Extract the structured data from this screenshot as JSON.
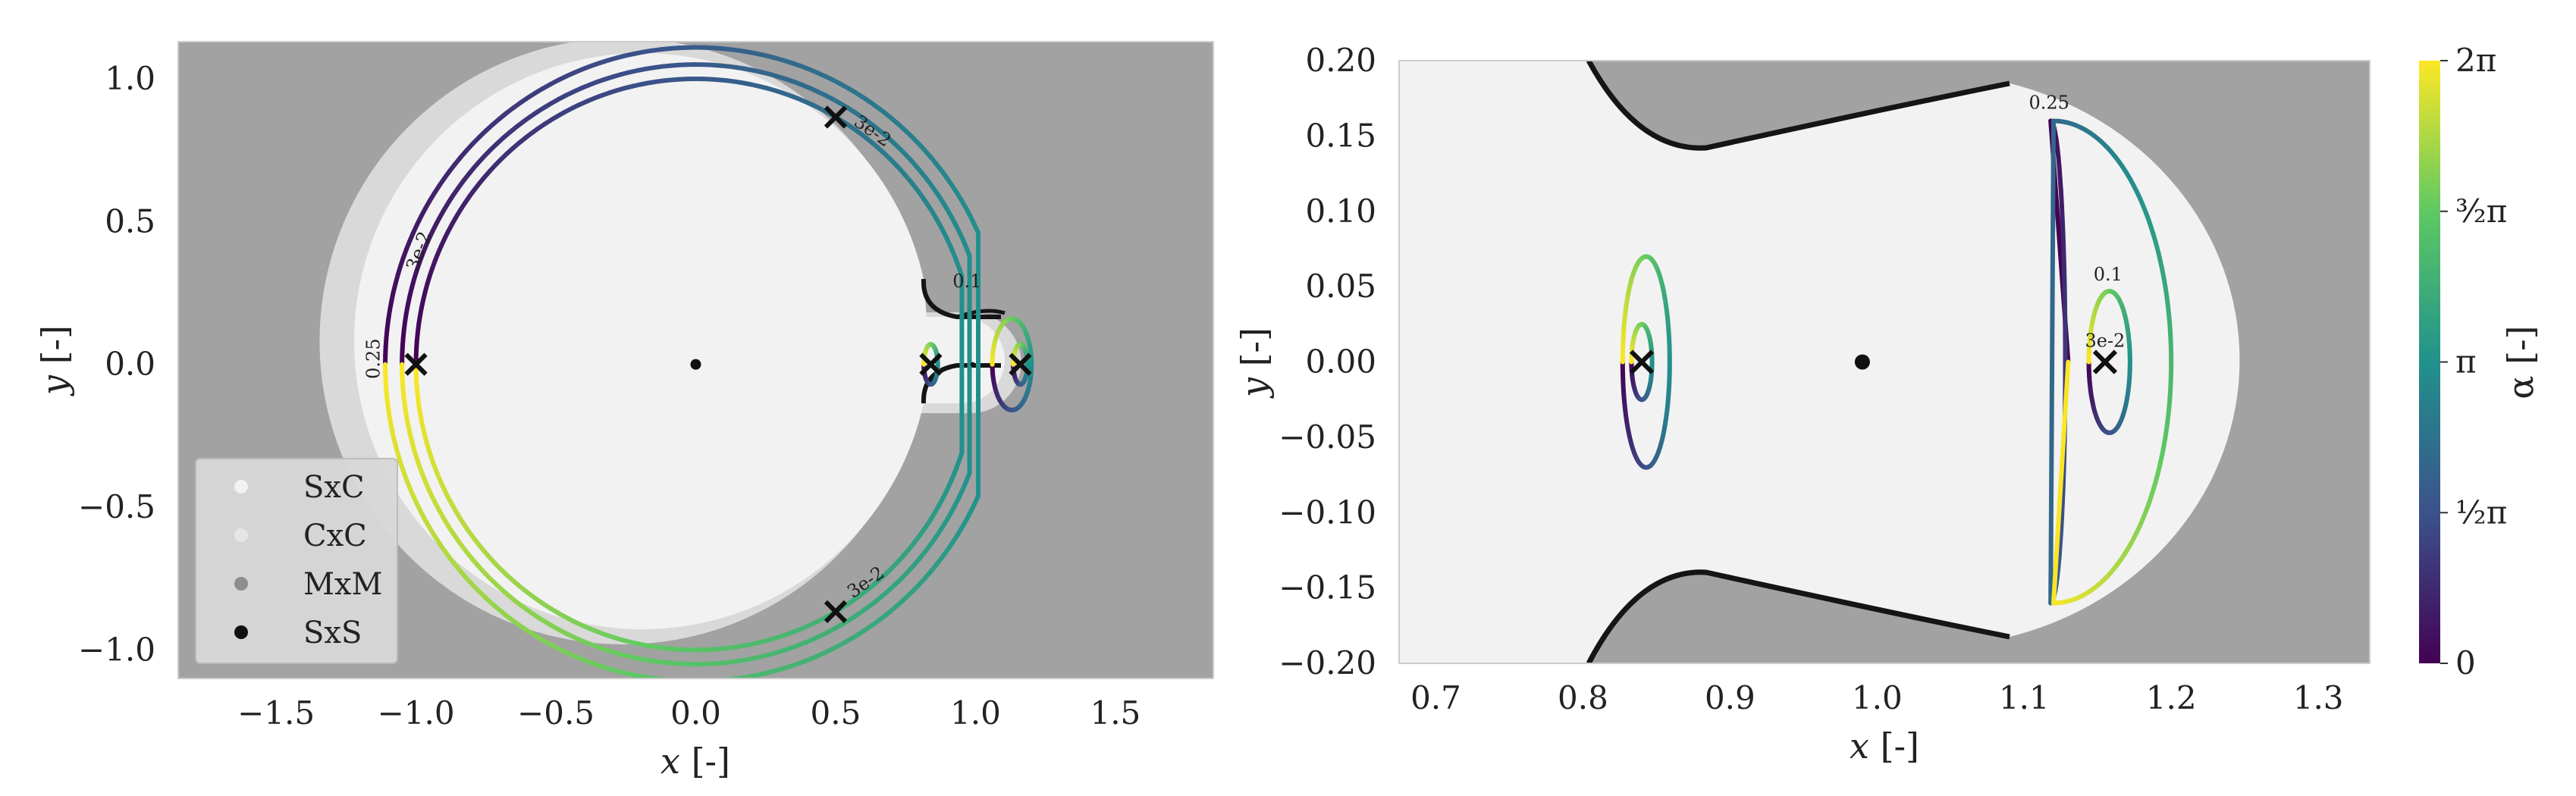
{
  "chart_data": [
    {
      "type": "line",
      "xlabel_var": "x",
      "xlabel_unit": "[-]",
      "ylabel_var": "y",
      "ylabel_unit": "[-]",
      "xlim": [
        -1.85,
        1.85
      ],
      "ylim": [
        -1.1,
        1.13
      ],
      "xticks": [
        -1.5,
        -1.0,
        -0.5,
        0.0,
        0.5,
        1.0,
        1.5
      ],
      "xtick_labels": [
        "−1.5",
        "−1.0",
        "−0.5",
        "0.0",
        "0.5",
        "1.0",
        "1.5"
      ],
      "yticks": [
        -1.0,
        -0.5,
        0.0,
        0.5,
        1.0
      ],
      "ytick_labels": [
        "−1.0",
        "−0.5",
        "0.0",
        "0.5",
        "1.0"
      ],
      "grid": false,
      "legend_position": "lower-left",
      "legend": [
        {
          "label": "SxC",
          "color": "#f2f2f2"
        },
        {
          "label": "CxC",
          "color": "#d9d9d9"
        },
        {
          "label": "MxM",
          "color": "#9a9a9a"
        },
        {
          "label": "SxS",
          "color": "#111111"
        }
      ],
      "contour_labels": [
        "0.25",
        "3e-2",
        "0.1",
        "3e-2",
        "3e-2"
      ],
      "points": {
        "primary": [
          0.0,
          0.0
        ],
        "secondary": [
          0.99,
          0.0
        ],
        "x_markers": [
          [
            -1.0,
            0.0
          ],
          [
            0.5,
            0.866
          ],
          [
            0.5,
            -0.866
          ],
          [
            0.84,
            0.0
          ],
          [
            1.16,
            0.0
          ]
        ]
      },
      "contour_levels": [
        {
          "label": "0.25",
          "r": 1.11,
          "points": [
            [
              -1.11,
              0.0
            ],
            [
              0.0,
              1.11
            ],
            [
              0.84,
              0.44
            ],
            [
              0.84,
              -0.44
            ],
            [
              0.0,
              -1.11
            ]
          ]
        },
        {
          "label": "0.1",
          "r": 1.05,
          "points": [
            [
              -1.05,
              0.0
            ],
            [
              0.0,
              1.05
            ],
            [
              0.86,
              0.35
            ],
            [
              0.86,
              -0.35
            ],
            [
              0.0,
              -1.05
            ]
          ]
        },
        {
          "label": "3e-2",
          "r": 1.0,
          "points": [
            [
              -1.0,
              0.0
            ],
            [
              0.0,
              1.0
            ],
            [
              0.5,
              0.866
            ],
            [
              0.5,
              -0.866
            ],
            [
              0.0,
              -1.0
            ]
          ]
        }
      ]
    },
    {
      "type": "line",
      "xlabel_var": "x",
      "xlabel_unit": "[-]",
      "ylabel_var": "y",
      "ylabel_unit": "[-]",
      "xlim": [
        0.675,
        1.335
      ],
      "ylim": [
        -0.2,
        0.2
      ],
      "xticks": [
        0.7,
        0.8,
        0.9,
        1.0,
        1.1,
        1.2,
        1.3
      ],
      "xtick_labels": [
        "0.7",
        "0.8",
        "0.9",
        "1.0",
        "1.1",
        "1.2",
        "1.3"
      ],
      "yticks": [
        -0.2,
        -0.15,
        -0.1,
        -0.05,
        0.0,
        0.05,
        0.1,
        0.15,
        0.2
      ],
      "ytick_labels": [
        "−0.20",
        "−0.15",
        "−0.10",
        "−0.05",
        "0.00",
        "0.05",
        "0.10",
        "0.15",
        "0.20"
      ],
      "grid": false,
      "contour_labels": [
        "0.25",
        "0.1",
        "3e-2"
      ],
      "points": {
        "secondary": [
          0.99,
          0.0
        ],
        "x_markers": [
          [
            0.84,
            0.0
          ],
          [
            1.155,
            0.0
          ]
        ]
      },
      "contour_levels": [
        {
          "label": "0.25",
          "points": [
            [
              1.13,
              0.0
            ],
            [
              1.105,
              0.16
            ],
            [
              1.2,
              0.0
            ],
            [
              1.105,
              -0.16
            ]
          ]
        },
        {
          "label": "0.1",
          "points": [
            [
              1.145,
              0.0
            ],
            [
              1.158,
              0.047
            ],
            [
              1.172,
              0.0
            ],
            [
              1.158,
              -0.047
            ]
          ]
        },
        {
          "label": "3e-2",
          "points": [
            [
              0.828,
              0.0
            ],
            [
              0.84,
              0.07
            ],
            [
              0.858,
              0.0
            ],
            [
              0.84,
              -0.068
            ]
          ]
        }
      ],
      "colorbar": {
        "label": "α  [-]",
        "range": [
          0,
          6.2832
        ],
        "tick_values": [
          0,
          1.5708,
          3.1416,
          4.7124,
          6.2832
        ],
        "tick_labels": [
          "0",
          "½π",
          "π",
          "³⁄₂π",
          "2π"
        ],
        "colormap_stops": [
          "#440154",
          "#3b528b",
          "#21918c",
          "#5ec962",
          "#fde725"
        ]
      }
    }
  ]
}
